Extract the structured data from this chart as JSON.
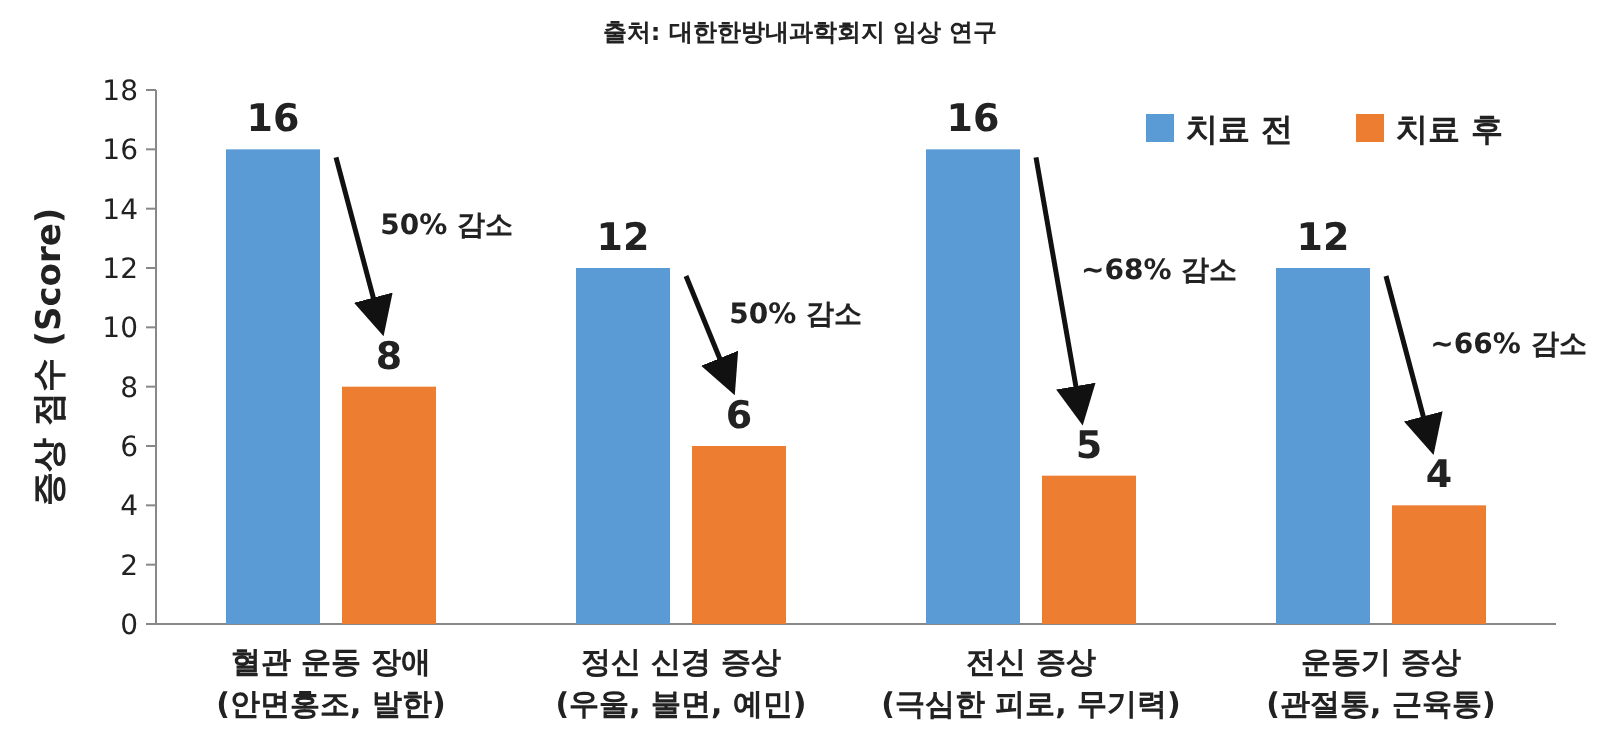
{
  "chart_data": {
    "type": "bar",
    "title": "출처: 대한한방내과학회지 임상 연구",
    "ylabel": "증상 점수 (Score)",
    "categories": [
      "혈관 운동 장애\n(안면홍조, 발한)",
      "정신 신경 증상\n(우울, 불면, 예민)",
      "전신 증상\n(극심한 피로, 무기력)",
      "운동기 증상\n(관절통, 근육통)"
    ],
    "series": [
      {
        "name": "치료 전",
        "color": "#5b9bd5",
        "values": [
          16,
          12,
          16,
          12
        ]
      },
      {
        "name": "치료 후",
        "color": "#ed7d31",
        "values": [
          8,
          6,
          5,
          4
        ]
      }
    ],
    "ylim": [
      0,
      18
    ],
    "yticks": [
      0,
      2,
      4,
      6,
      8,
      10,
      12,
      14,
      16,
      18
    ],
    "data_labels": true,
    "legend": "top right",
    "annotations": [
      "50% 감소",
      "50% 감소",
      "~68% 감소",
      "~66% 감소"
    ]
  }
}
